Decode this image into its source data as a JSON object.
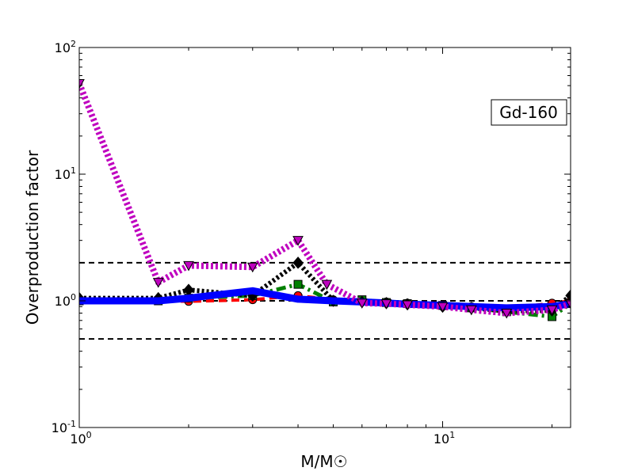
{
  "chart_data": {
    "type": "line",
    "xscale": "log",
    "yscale": "log",
    "xlim": [
      1,
      22.5
    ],
    "ylim": [
      0.1,
      100
    ],
    "xlabel": "M/M☉",
    "ylabel": "Overproduction factor",
    "annotation": "Gd-160",
    "x_ticks": [
      {
        "value": 1,
        "base": "10",
        "exp": "0"
      },
      {
        "value": 10,
        "base": "10",
        "exp": "1"
      }
    ],
    "y_ticks": [
      {
        "value": 0.1,
        "base": "10",
        "exp": "-1"
      },
      {
        "value": 1,
        "base": "10",
        "exp": "0"
      },
      {
        "value": 10,
        "base": "10",
        "exp": "1"
      },
      {
        "value": 100,
        "base": "10",
        "exp": "2"
      }
    ],
    "reference_lines": [
      0.5,
      1,
      2
    ],
    "series": [
      {
        "color": "#ff0000",
        "style": "dashed",
        "marker": "circle",
        "x": [
          1,
          1.65,
          2,
          3,
          4,
          5,
          6,
          7,
          8,
          10,
          12,
          15,
          20,
          22.5
        ],
        "y": [
          1.0,
          1.0,
          0.99,
          1.02,
          1.1,
          1.02,
          1.0,
          0.98,
          0.96,
          0.92,
          0.9,
          0.86,
          0.96,
          1.0
        ]
      },
      {
        "color": "#008000",
        "style": "dashdot",
        "marker": "square",
        "x": [
          1,
          1.65,
          2,
          3,
          4,
          5,
          6,
          7,
          8,
          10,
          12,
          15,
          20,
          22.5
        ],
        "y": [
          1.0,
          1.0,
          1.05,
          1.1,
          1.35,
          0.98,
          1.02,
          0.97,
          0.95,
          0.92,
          0.88,
          0.82,
          0.75,
          0.95
        ]
      },
      {
        "color": "#000000",
        "style": "dotted",
        "marker": "diamond",
        "x": [
          1,
          1.65,
          2,
          3,
          4,
          5,
          6,
          7,
          8,
          10,
          12,
          15,
          20,
          22.5
        ],
        "y": [
          1.05,
          1.05,
          1.22,
          1.1,
          2.0,
          1.0,
          0.98,
          0.96,
          0.94,
          0.9,
          0.88,
          0.83,
          0.84,
          1.1
        ]
      },
      {
        "color": "#0000ff",
        "style": "solid",
        "marker": "none",
        "x": [
          1,
          1.65,
          2,
          3,
          4,
          5,
          6,
          7,
          8,
          10,
          12,
          15,
          20,
          22.5
        ],
        "y": [
          1.0,
          1.0,
          1.05,
          1.2,
          1.03,
          1.0,
          0.98,
          0.96,
          0.94,
          0.92,
          0.9,
          0.88,
          0.9,
          0.95
        ]
      },
      {
        "color": "#bf00bf",
        "style": "dotted",
        "marker": "triangle-down",
        "x": [
          1,
          1.65,
          2,
          3,
          4,
          4.8,
          6,
          7,
          8,
          10,
          12,
          15,
          20,
          22.5
        ],
        "y": [
          52,
          1.4,
          1.9,
          1.85,
          3.0,
          1.35,
          0.96,
          0.95,
          0.93,
          0.9,
          0.85,
          0.8,
          0.85,
          0.95
        ]
      }
    ]
  }
}
